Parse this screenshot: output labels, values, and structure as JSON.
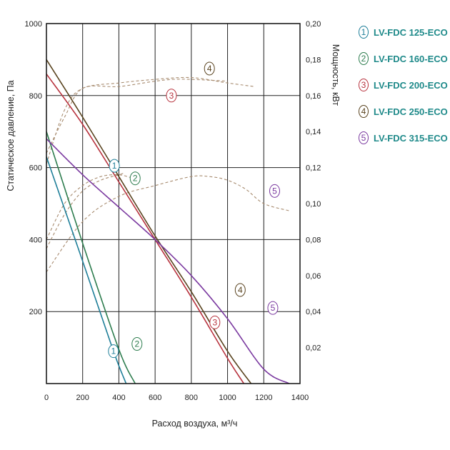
{
  "chart_data": {
    "type": "line",
    "title": "",
    "xlabel": "Расход воздуха, м³/ч",
    "ylabel": "Статическое давление, Па",
    "y2label": "Мощность, кВт",
    "xlim": [
      0,
      1400
    ],
    "ylim": [
      0,
      1000
    ],
    "y2lim": [
      0,
      0.2
    ],
    "x_ticks": [
      "0",
      "200",
      "400",
      "600",
      "800",
      "1000",
      "1200",
      "1400"
    ],
    "y_ticks": [
      "200",
      "400",
      "600",
      "800",
      "1000"
    ],
    "y2_ticks": [
      "0,02",
      "0,04",
      "0,06",
      "0,08",
      "0,10",
      "0,12",
      "0,14",
      "0,16",
      "0,18",
      "0,20"
    ],
    "grid": true,
    "legend_position": "right",
    "series": [
      {
        "id": "1",
        "name": "LV-FDC 125-ECO",
        "color": "#1f7f99",
        "pressure": {
          "x": [
            0,
            200,
            370,
            440
          ],
          "y": [
            630,
            340,
            90,
            0
          ]
        },
        "power": {
          "x": [
            0,
            100,
            200,
            300,
            400,
            430
          ],
          "y": [
            0.075,
            0.094,
            0.107,
            0.113,
            0.116,
            0.117
          ]
        }
      },
      {
        "id": "2",
        "name": "LV-FDC 160-ECO",
        "color": "#2e7d4f",
        "pressure": {
          "x": [
            0,
            200,
            400,
            490
          ],
          "y": [
            700,
            390,
            95,
            0
          ]
        },
        "power": {
          "x": [
            0,
            100,
            200,
            300,
            400,
            480
          ],
          "y": [
            0.08,
            0.1,
            0.11,
            0.115,
            0.116,
            0.114
          ]
        }
      },
      {
        "id": "3",
        "name": "LV-FDC 200-ECO",
        "color": "#b8343f",
        "pressure": {
          "x": [
            0,
            200,
            400,
            600,
            800,
            1000,
            1090
          ],
          "y": [
            860,
            720,
            560,
            400,
            240,
            70,
            0
          ]
        },
        "power": {
          "x": [
            0,
            100,
            200,
            400,
            600,
            700,
            800,
            1000
          ],
          "y": [
            0.128,
            0.148,
            0.164,
            0.165,
            0.168,
            0.169,
            0.169,
            0.168
          ]
        }
      },
      {
        "id": "4",
        "name": "LV-FDC 250-ECO",
        "color": "#5a4420",
        "pressure": {
          "x": [
            0,
            200,
            400,
            600,
            800,
            1000,
            1130
          ],
          "y": [
            900,
            740,
            575,
            410,
            255,
            90,
            0
          ]
        },
        "power": {
          "x": [
            0,
            100,
            200,
            400,
            600,
            800,
            1000,
            1150
          ],
          "y": [
            0.122,
            0.152,
            0.164,
            0.167,
            0.169,
            0.17,
            0.167,
            0.165
          ]
        }
      },
      {
        "id": "5",
        "name": "LV-FDC 315-ECO",
        "color": "#7b3aa0",
        "pressure": {
          "x": [
            0,
            200,
            400,
            600,
            800,
            1000,
            1200,
            1340
          ],
          "y": [
            680,
            580,
            490,
            400,
            300,
            180,
            40,
            0
          ]
        },
        "power": {
          "x": [
            0,
            200,
            400,
            600,
            800,
            900,
            1000,
            1100,
            1200,
            1340
          ],
          "y": [
            0.062,
            0.09,
            0.104,
            0.11,
            0.115,
            0.115,
            0.113,
            0.108,
            0.1,
            0.096
          ]
        }
      }
    ]
  }
}
